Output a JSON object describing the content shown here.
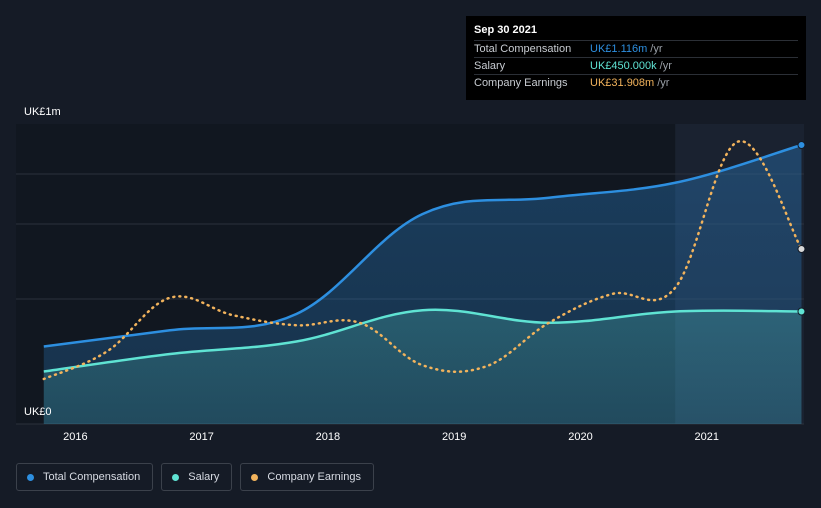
{
  "chart_data": {
    "type": "line",
    "ylabel_top": "UK£1m",
    "ylabel_bottom": "UK£0",
    "ylim": [
      0,
      1200000
    ],
    "x_ticks": [
      "2016",
      "2017",
      "2018",
      "2019",
      "2020",
      "2021"
    ],
    "series": [
      {
        "name": "Total Compensation",
        "color": "#2d8fe0",
        "style": "area-solid",
        "points": [
          [
            2015.75,
            310000
          ],
          [
            2016.75,
            375000
          ],
          [
            2017.75,
            440000
          ],
          [
            2018.75,
            840000
          ],
          [
            2019.75,
            905000
          ],
          [
            2020.75,
            965000
          ],
          [
            2021.75,
            1116000
          ]
        ]
      },
      {
        "name": "Salary",
        "color": "#5fe3d3",
        "style": "area-solid",
        "points": [
          [
            2015.75,
            210000
          ],
          [
            2016.75,
            280000
          ],
          [
            2017.75,
            330000
          ],
          [
            2018.75,
            455000
          ],
          [
            2019.75,
            405000
          ],
          [
            2020.75,
            450000
          ],
          [
            2021.75,
            450000
          ]
        ]
      },
      {
        "name": "Company Earnings",
        "color": "#f2b35c",
        "style": "dotted",
        "points": [
          [
            2015.75,
            180000
          ],
          [
            2016.25,
            290000
          ],
          [
            2016.75,
            505000
          ],
          [
            2017.25,
            435000
          ],
          [
            2017.75,
            395000
          ],
          [
            2018.25,
            405000
          ],
          [
            2018.75,
            235000
          ],
          [
            2019.25,
            230000
          ],
          [
            2019.75,
            405000
          ],
          [
            2020.25,
            520000
          ],
          [
            2020.75,
            545000
          ],
          [
            2021.25,
            1130000
          ],
          [
            2021.75,
            700000
          ]
        ]
      }
    ],
    "highlight_start": 2020.75
  },
  "tooltip": {
    "date": "Sep 30 2021",
    "rows": [
      {
        "label": "Total Compensation",
        "value": "UK£1.116m",
        "unit": "/yr",
        "color": "#2d8fe0"
      },
      {
        "label": "Salary",
        "value": "UK£450.000k",
        "unit": "/yr",
        "color": "#5fe3d3"
      },
      {
        "label": "Company Earnings",
        "value": "UK£31.908m",
        "unit": "/yr",
        "color": "#f2b35c"
      }
    ]
  },
  "legend": [
    {
      "label": "Total Compensation",
      "color": "#2d8fe0"
    },
    {
      "label": "Salary",
      "color": "#5fe3d3"
    },
    {
      "label": "Company Earnings",
      "color": "#f2b35c"
    }
  ]
}
